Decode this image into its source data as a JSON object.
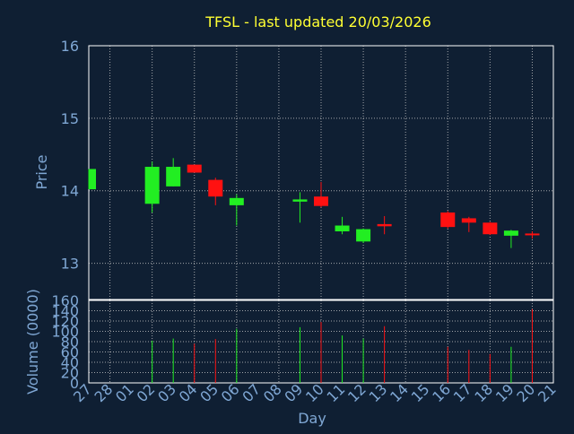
{
  "colors": {
    "background": "#0f1f33",
    "title": "#ffff33",
    "axis_text": "#7fa7d4",
    "frame": "#ffffff",
    "grid": "#c8c8c8",
    "up": "#22ee22",
    "down": "#ff1111"
  },
  "chart_data": [
    {
      "type": "candlestick",
      "title": "TFSL - last updated 20/03/2026",
      "ylabel": "Price",
      "ylim": [
        12.5,
        16.0
      ],
      "y_ticks": [
        "13",
        "14",
        "15",
        "16"
      ],
      "grid": true,
      "x_categories": [
        "27",
        "28",
        "01",
        "02",
        "03",
        "04",
        "05",
        "06",
        "07",
        "08",
        "09",
        "10",
        "11",
        "12",
        "13",
        "14",
        "15",
        "16",
        "17",
        "18",
        "19",
        "20",
        "21"
      ],
      "candles": [
        {
          "day": "27",
          "open": 14.02,
          "high": 14.3,
          "low": 14.02,
          "close": 14.3
        },
        {
          "day": "02",
          "open": 13.82,
          "high": 14.4,
          "low": 13.7,
          "close": 14.33
        },
        {
          "day": "03",
          "open": 14.06,
          "high": 14.45,
          "low": 14.06,
          "close": 14.33
        },
        {
          "day": "04",
          "open": 14.36,
          "high": 14.36,
          "low": 14.25,
          "close": 14.25
        },
        {
          "day": "05",
          "open": 14.15,
          "high": 14.18,
          "low": 13.8,
          "close": 13.92
        },
        {
          "day": "06",
          "open": 13.8,
          "high": 13.95,
          "low": 13.52,
          "close": 13.9
        },
        {
          "day": "09",
          "open": 13.85,
          "high": 13.98,
          "low": 13.56,
          "close": 13.88
        },
        {
          "day": "10",
          "open": 13.92,
          "high": 14.12,
          "low": 13.77,
          "close": 13.79
        },
        {
          "day": "11",
          "open": 13.44,
          "high": 13.64,
          "low": 13.4,
          "close": 13.52
        },
        {
          "day": "12",
          "open": 13.3,
          "high": 13.48,
          "low": 13.28,
          "close": 13.47
        },
        {
          "day": "13",
          "open": 13.54,
          "high": 13.65,
          "low": 13.4,
          "close": 13.51
        },
        {
          "day": "16",
          "open": 13.7,
          "high": 13.72,
          "low": 13.48,
          "close": 13.5
        },
        {
          "day": "17",
          "open": 13.62,
          "high": 13.64,
          "low": 13.43,
          "close": 13.56
        },
        {
          "day": "18",
          "open": 13.56,
          "high": 13.57,
          "low": 13.39,
          "close": 13.4
        },
        {
          "day": "19",
          "open": 13.38,
          "high": 13.46,
          "low": 13.21,
          "close": 13.45
        },
        {
          "day": "20",
          "open": 13.41,
          "high": 13.44,
          "low": 13.34,
          "close": 13.39
        }
      ]
    },
    {
      "type": "bar",
      "ylabel": "Volume (0000)",
      "xlabel": "Day",
      "ylim": [
        0,
        160
      ],
      "y_ticks": [
        "0",
        "20",
        "40",
        "60",
        "80",
        "100",
        "120",
        "140",
        "160"
      ],
      "grid": true,
      "categories": [
        "27",
        "28",
        "01",
        "02",
        "03",
        "04",
        "05",
        "06",
        "07",
        "08",
        "09",
        "10",
        "11",
        "12",
        "13",
        "14",
        "15",
        "16",
        "17",
        "18",
        "19",
        "20",
        "21"
      ],
      "bars": [
        {
          "day": "02",
          "value": 82,
          "direction": "up"
        },
        {
          "day": "03",
          "value": 86,
          "direction": "up"
        },
        {
          "day": "04",
          "value": 76,
          "direction": "down"
        },
        {
          "day": "05",
          "value": 85,
          "direction": "down"
        },
        {
          "day": "06",
          "value": 105,
          "direction": "up"
        },
        {
          "day": "09",
          "value": 108,
          "direction": "up"
        },
        {
          "day": "10",
          "value": 118,
          "direction": "down"
        },
        {
          "day": "11",
          "value": 92,
          "direction": "up"
        },
        {
          "day": "12",
          "value": 86,
          "direction": "up"
        },
        {
          "day": "13",
          "value": 110,
          "direction": "down"
        },
        {
          "day": "16",
          "value": 70,
          "direction": "down"
        },
        {
          "day": "17",
          "value": 64,
          "direction": "down"
        },
        {
          "day": "18",
          "value": 56,
          "direction": "down"
        },
        {
          "day": "19",
          "value": 70,
          "direction": "up"
        },
        {
          "day": "20",
          "value": 143,
          "direction": "down"
        }
      ]
    }
  ]
}
